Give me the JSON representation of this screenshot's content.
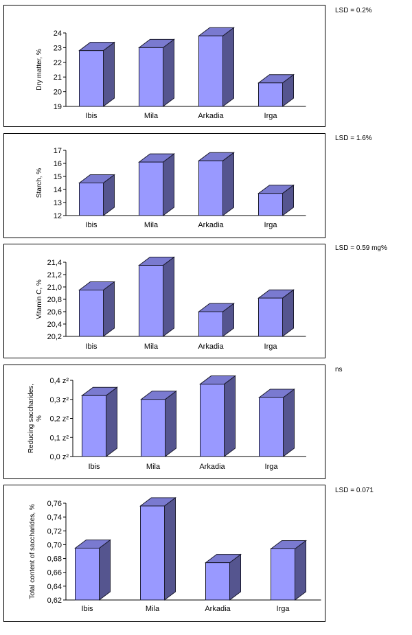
{
  "colors": {
    "front": "#9999ff",
    "side": "#55558f",
    "top": "#7a7ad0",
    "edge": "#1a1a2e"
  },
  "chart_data": [
    {
      "type": "bar",
      "categories": [
        "Ibis",
        "Mila",
        "Arkadia",
        "Irga"
      ],
      "values": [
        22.8,
        23.0,
        23.8,
        20.6
      ],
      "ylabel": "Dry matter, %",
      "ylim": [
        19,
        24
      ],
      "ticks": [
        "19",
        "20",
        "21",
        "22",
        "23",
        "24"
      ],
      "annotation": "LSD = 0.2%"
    },
    {
      "type": "bar",
      "categories": [
        "Ibis",
        "Mila",
        "Arkadia",
        "Irga"
      ],
      "values": [
        14.5,
        16.1,
        16.2,
        13.7
      ],
      "ylabel": "Starch, %",
      "ylim": [
        12,
        17
      ],
      "ticks": [
        "12",
        "13",
        "14",
        "15",
        "16",
        "17"
      ],
      "annotation": "LSD = 1.6%"
    },
    {
      "type": "bar",
      "categories": [
        "Ibis",
        "Mila",
        "Arkadia",
        "Irga"
      ],
      "values": [
        20.95,
        21.35,
        20.6,
        20.82
      ],
      "ylabel": "Vitamin C, %",
      "ylim": [
        20.2,
        21.4
      ],
      "ticks": [
        "20,2",
        "20,4",
        "20,6",
        "20,8",
        "21,0",
        "21,2",
        "21,4"
      ],
      "annotation": "LSD = 0.59 mg%"
    },
    {
      "type": "bar",
      "categories": [
        "Ibis",
        "Mila",
        "Arkadia",
        "Irga"
      ],
      "values": [
        0.32,
        0.3,
        0.38,
        0.31
      ],
      "ylabel_lines": [
        "Reducing saccharides,",
        "%"
      ],
      "ylim": [
        0.0,
        0.4
      ],
      "ticks": [
        "0,0 z²",
        "0,1 z²",
        "0,2 z²",
        "0,3 z²",
        "0,4 z²"
      ],
      "annotation": "ns"
    },
    {
      "type": "bar",
      "categories": [
        "Ibis",
        "Mila",
        "Arkadia",
        "Irga"
      ],
      "values": [
        0.695,
        0.756,
        0.674,
        0.694
      ],
      "ylabel": "Total content of saccharides, %",
      "ylim": [
        0.62,
        0.76
      ],
      "ticks": [
        "0,62",
        "0,64",
        "0,66",
        "0,68",
        "0,70",
        "0,72",
        "0,74",
        "0,76"
      ],
      "annotation": "LSD = 0.071"
    }
  ]
}
